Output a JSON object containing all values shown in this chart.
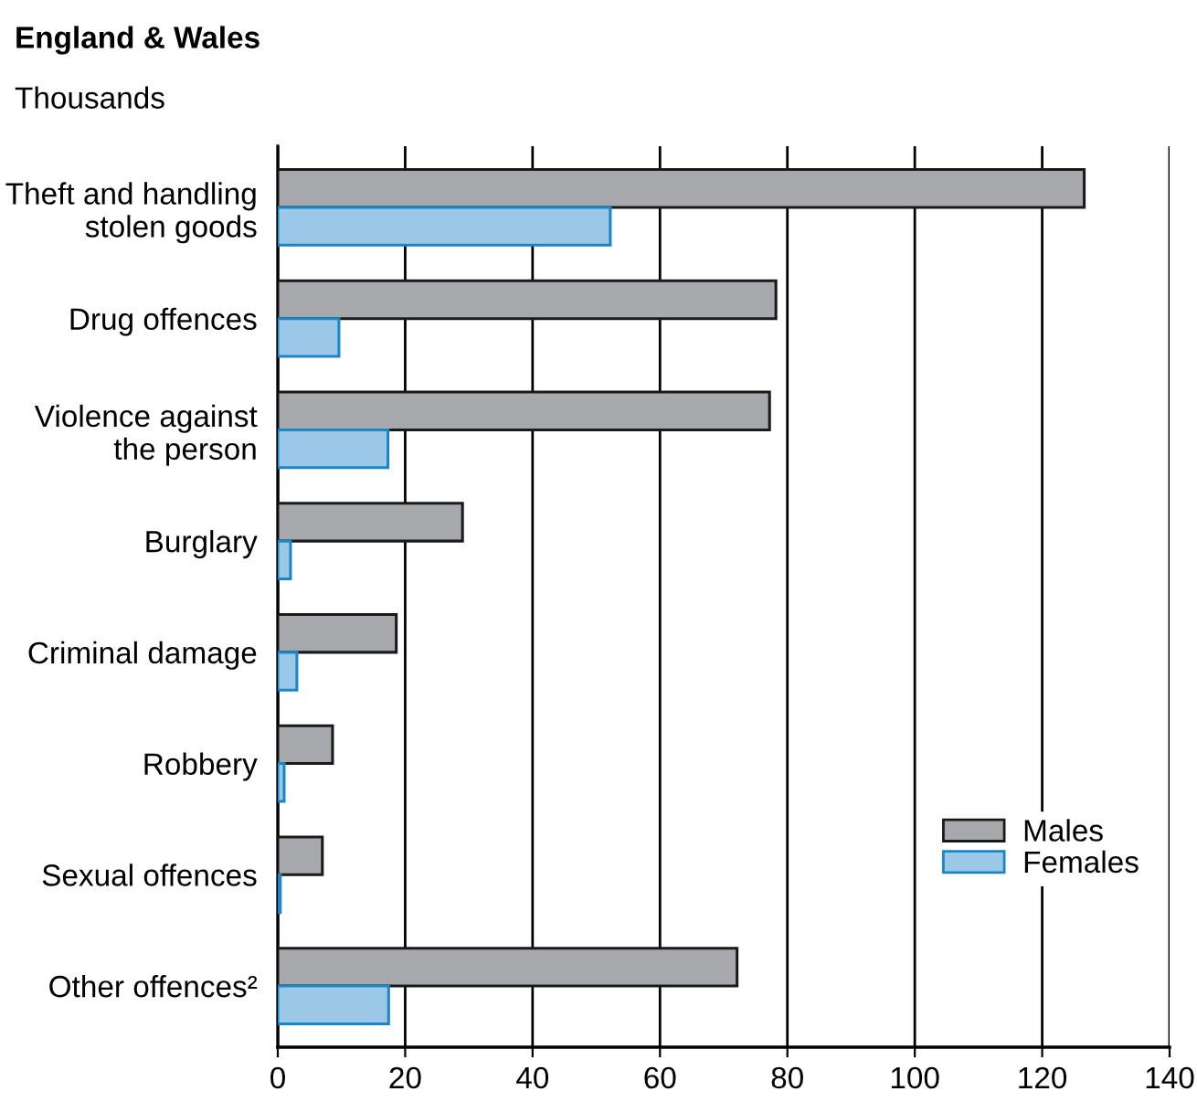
{
  "chart_data": {
    "type": "bar",
    "orientation": "horizontal",
    "title": "England & Wales",
    "subtitle": "Thousands",
    "categories": [
      "Theft and handling\nstolen goods",
      "Drug offences",
      "Violence against\nthe person",
      "Burglary",
      "Criminal damage",
      "Robbery",
      "Sexual offences",
      "Other offences²"
    ],
    "series": [
      {
        "name": "Males",
        "color": "#a7a8ab",
        "values": [
          126.6,
          78.2,
          77.2,
          29.0,
          18.6,
          8.6,
          7.0,
          72.1
        ]
      },
      {
        "name": "Females",
        "color": "#9bc8e6",
        "values": [
          52.2,
          9.6,
          17.3,
          2.0,
          3.0,
          1.0,
          0.4,
          17.4
        ]
      }
    ],
    "xlim": [
      0,
      140
    ],
    "xticks": [
      0,
      20,
      40,
      60,
      80,
      100,
      120,
      140
    ],
    "grid": "x",
    "legend": "right"
  }
}
